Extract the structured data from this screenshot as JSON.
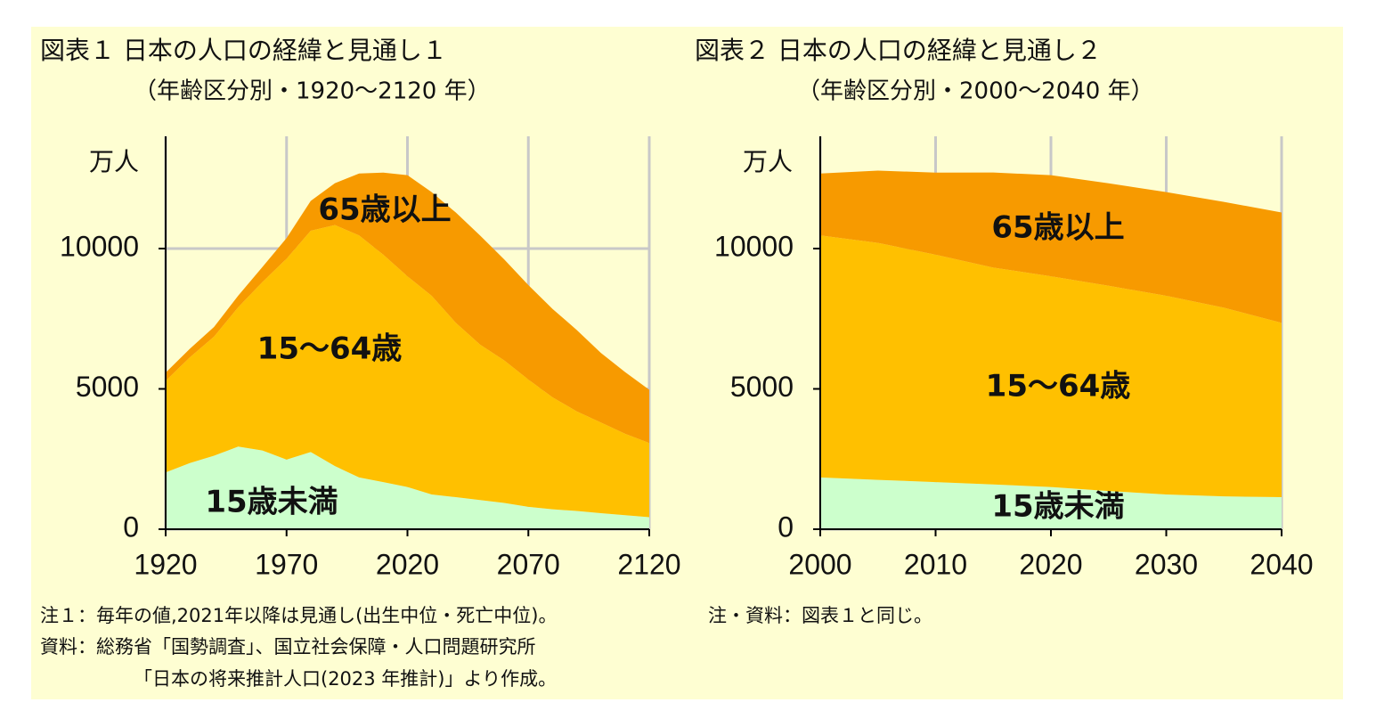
{
  "chart_data": [
    {
      "type": "stacked-area",
      "title": "図表１ 日本の人口の経緯と見通し１",
      "subtitle": "（年齢区分別・1920～2120 年）",
      "y_label": "万人",
      "x": [
        1920,
        1930,
        1940,
        1950,
        1960,
        1970,
        1980,
        1990,
        2000,
        2010,
        2020,
        2030,
        2040,
        2050,
        2060,
        2070,
        2080,
        2090,
        2100,
        2110,
        2120
      ],
      "series": [
        {
          "name": "15歳未満",
          "color": "#ccffcc",
          "values": [
            2025,
            2358,
            2621,
            2943,
            2807,
            2482,
            2751,
            2249,
            1847,
            1680,
            1503,
            1240,
            1142,
            1041,
            937,
            797,
            710,
            650,
            570,
            500,
            430
          ]
        },
        {
          "name": "15～64歳",
          "color": "#ffc000",
          "values": [
            3260,
            3764,
            4241,
            4966,
            6000,
            7157,
            7883,
            8590,
            8622,
            8103,
            7509,
            7076,
            6213,
            5540,
            5078,
            4535,
            3990,
            3550,
            3230,
            2900,
            2640
          ]
        },
        {
          "name": "65歳以上",
          "color": "#f79a00",
          "values": [
            294,
            306,
            346,
            411,
            535,
            733,
            1065,
            1489,
            2204,
            2925,
            3603,
            3696,
            3929,
            3888,
            3600,
            3367,
            3150,
            2900,
            2480,
            2200,
            1900
          ]
        }
      ],
      "xlim": [
        1920,
        2120
      ],
      "xticks": [
        1920,
        1970,
        2020,
        2070,
        2120
      ],
      "ylim": [
        0,
        14000
      ],
      "yticks": [
        0,
        5000,
        10000
      ],
      "grid": true,
      "notes": [
        "注１：毎年の値,2021年以降は見通し(出生中位・死亡中位)。",
        "資料：総務省「国勢調査」、国立社会保障・人口問題研究所",
        "「日本の将来推計人口(2023 年推計)」より作成。"
      ]
    },
    {
      "type": "stacked-area",
      "title": "図表２ 日本の人口の経緯と見通し２",
      "subtitle": "（年齢区分別・2000～2040 年）",
      "y_label": "万人",
      "x": [
        2000,
        2005,
        2010,
        2015,
        2020,
        2025,
        2030,
        2035,
        2040
      ],
      "series": [
        {
          "name": "15歳未満",
          "color": "#ccffcc",
          "values": [
            1847,
            1759,
            1680,
            1595,
            1503,
            1363,
            1240,
            1169,
            1142
          ]
        },
        {
          "name": "15～64歳",
          "color": "#ffc000",
          "values": [
            8622,
            8442,
            8103,
            7728,
            7509,
            7310,
            7076,
            6722,
            6213
          ]
        },
        {
          "name": "65歳以上",
          "color": "#f79a00",
          "values": [
            2204,
            2576,
            2925,
            3387,
            3603,
            3653,
            3696,
            3773,
            3929
          ]
        }
      ],
      "xlim": [
        2000,
        2040
      ],
      "xticks": [
        2000,
        2010,
        2020,
        2030,
        2040
      ],
      "ylim": [
        0,
        14000
      ],
      "yticks": [
        0,
        5000,
        10000
      ],
      "grid": true,
      "notes": [
        "注・資料：図表１と同じ。"
      ]
    }
  ]
}
